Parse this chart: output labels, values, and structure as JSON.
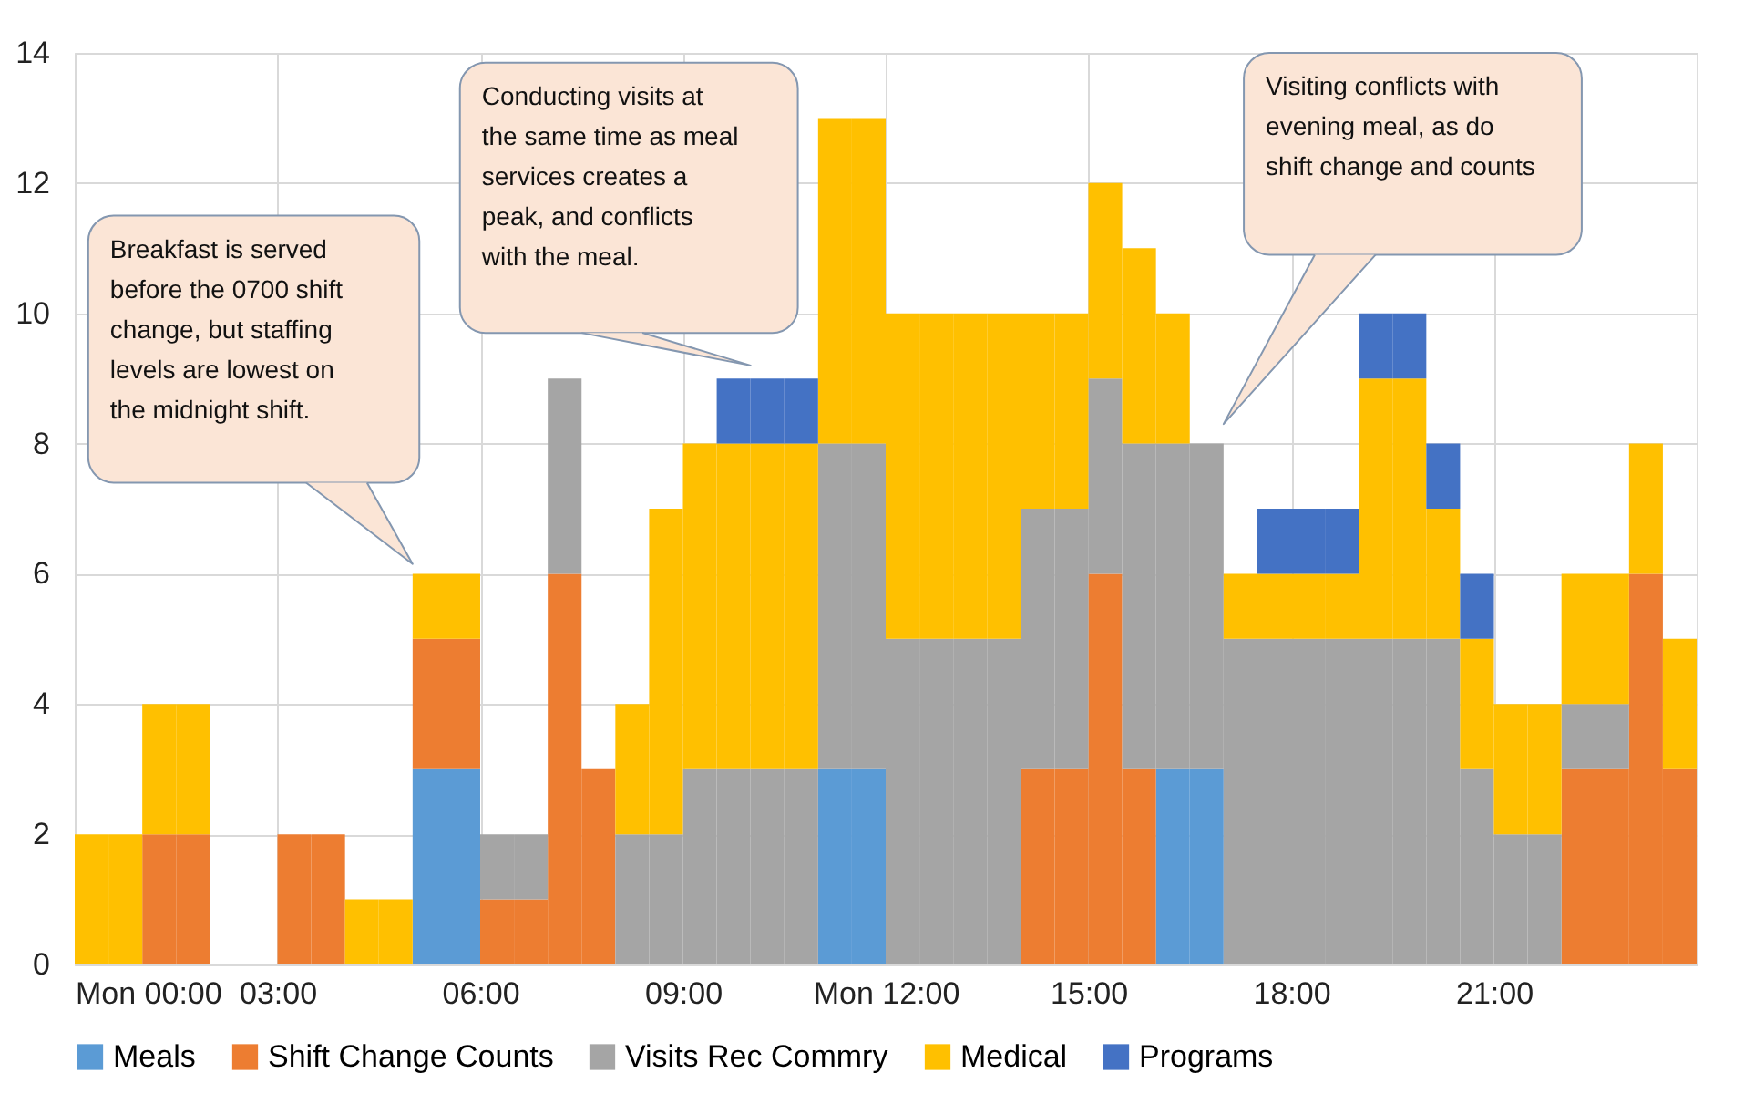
{
  "chart_data": {
    "type": "bar",
    "stacked": true,
    "x": [
      0.25,
      0.75,
      1.25,
      1.75,
      2.25,
      2.75,
      3.25,
      3.75,
      4.25,
      4.75,
      5.25,
      5.75,
      6.25,
      6.75,
      7.25,
      7.75,
      8.25,
      8.75,
      9.25,
      9.75,
      10.25,
      10.75,
      11.25,
      11.75,
      12.25,
      12.75,
      13.25,
      13.75,
      14.25,
      14.75,
      15.25,
      15.75,
      16.25,
      16.75,
      17.25,
      17.75,
      18.25,
      18.75,
      19.25,
      19.75,
      20.25,
      20.75,
      21.25,
      21.75,
      22.25,
      22.75,
      23.25,
      23.75
    ],
    "xlim": [
      0,
      24
    ],
    "xticks": [
      {
        "value": 0,
        "label": "Mon 00:00"
      },
      {
        "value": 3,
        "label": "03:00"
      },
      {
        "value": 6,
        "label": "06:00"
      },
      {
        "value": 9,
        "label": "09:00"
      },
      {
        "value": 12,
        "label": "Mon 12:00"
      },
      {
        "value": 15,
        "label": "15:00"
      },
      {
        "value": 18,
        "label": "18:00"
      },
      {
        "value": 21,
        "label": "21:00"
      }
    ],
    "ylim": [
      0,
      14
    ],
    "yticks": [
      0,
      2,
      4,
      6,
      8,
      10,
      12,
      14
    ],
    "grid": true,
    "legend": "bottom",
    "series": [
      {
        "name": "Meals",
        "color": "#5b9bd5",
        "values": [
          0,
          0,
          0,
          0,
          0,
          0,
          0,
          0,
          0,
          0,
          3,
          3,
          0,
          0,
          0,
          0,
          0,
          0,
          0,
          0,
          0,
          0,
          3,
          3,
          0,
          0,
          0,
          0,
          0,
          0,
          0,
          0,
          3,
          3,
          0,
          0,
          0,
          0,
          0,
          0,
          0,
          0,
          0,
          0,
          0,
          0,
          0,
          0
        ]
      },
      {
        "name": "Shift Change Counts",
        "color": "#ed7d31",
        "values": [
          0,
          0,
          2,
          2,
          0,
          0,
          2,
          2,
          0,
          0,
          2,
          2,
          1,
          1,
          6,
          3,
          0,
          0,
          0,
          0,
          0,
          0,
          0,
          0,
          0,
          0,
          0,
          0,
          3,
          3,
          6,
          3,
          0,
          0,
          0,
          0,
          0,
          0,
          0,
          0,
          0,
          0,
          0,
          0,
          3,
          3,
          6,
          3
        ]
      },
      {
        "name": "Visits Rec Commry",
        "color": "#a5a5a5",
        "values": [
          0,
          0,
          0,
          0,
          0,
          0,
          0,
          0,
          0,
          0,
          0,
          0,
          1,
          1,
          3,
          0,
          2,
          2,
          3,
          3,
          3,
          3,
          5,
          5,
          5,
          5,
          5,
          5,
          4,
          4,
          3,
          5,
          5,
          5,
          5,
          5,
          5,
          5,
          5,
          5,
          5,
          3,
          2,
          2,
          1,
          1,
          0,
          0
        ]
      },
      {
        "name": "Medical",
        "color": "#ffc000",
        "values": [
          2,
          2,
          2,
          2,
          0,
          0,
          0,
          0,
          1,
          1,
          1,
          1,
          0,
          0,
          0,
          0,
          2,
          5,
          5,
          5,
          5,
          5,
          5,
          5,
          5,
          5,
          5,
          5,
          3,
          3,
          3,
          3,
          2,
          0,
          1,
          1,
          1,
          1,
          4,
          4,
          2,
          2,
          2,
          2,
          2,
          2,
          2,
          2
        ]
      },
      {
        "name": "Programs",
        "color": "#4472c4",
        "values": [
          0,
          0,
          0,
          0,
          0,
          0,
          0,
          0,
          0,
          0,
          0,
          0,
          0,
          0,
          0,
          0,
          0,
          0,
          0,
          1,
          1,
          1,
          0,
          0,
          0,
          0,
          0,
          0,
          0,
          0,
          0,
          0,
          0,
          0,
          0,
          1,
          1,
          1,
          1,
          1,
          1,
          1,
          0,
          0,
          0,
          0,
          0,
          0
        ]
      }
    ],
    "annotations": [
      "Breakfast is served before the 0700 shift change, but staffing levels are lowest on the midnight shift.",
      "Conducting visits at the same time as meal services creates a peak, and conflicts with the meal.",
      "Visiting conflicts with evening meal, as do shift change and counts"
    ]
  }
}
